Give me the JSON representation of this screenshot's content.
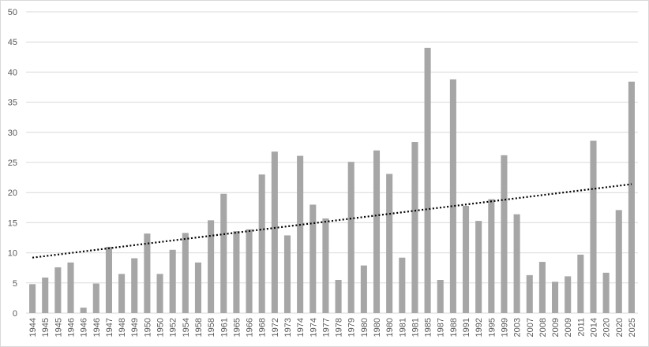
{
  "chart_data": {
    "type": "bar",
    "title": "",
    "xlabel": "",
    "ylabel": "",
    "ylim": [
      0,
      50
    ],
    "yticks": [
      0,
      5,
      10,
      15,
      20,
      25,
      30,
      35,
      40,
      45,
      50
    ],
    "grid": true,
    "legend": "none",
    "bar_color": "#a6a6a6",
    "trendline": {
      "type": "linear",
      "style": "dotted",
      "color": "#000000",
      "start": 9.2,
      "end": 21.4
    },
    "categories": [
      "1944",
      "1945",
      "1945",
      "1946",
      "1946",
      "1946",
      "1947",
      "1948",
      "1949",
      "1950",
      "1950",
      "1952",
      "1954",
      "1958",
      "1958",
      "1961",
      "1965",
      "1966",
      "1968",
      "1972",
      "1973",
      "1974",
      "1974",
      "1977",
      "1978",
      "1979",
      "1980",
      "1980",
      "1980",
      "1981",
      "1981",
      "1985",
      "1987",
      "1988",
      "1991",
      "1992",
      "1995",
      "1999",
      "2003",
      "2007",
      "2008",
      "2009",
      "2009",
      "2011",
      "2014",
      "2020",
      "2020",
      "2025"
    ],
    "values": [
      4.8,
      5.9,
      7.6,
      8.4,
      0.9,
      4.9,
      11.0,
      6.5,
      9.1,
      13.2,
      6.5,
      10.5,
      13.3,
      8.4,
      15.4,
      19.8,
      13.6,
      13.9,
      23.0,
      26.8,
      12.9,
      26.1,
      18.0,
      15.7,
      5.5,
      25.1,
      7.9,
      27.0,
      23.1,
      9.2,
      28.4,
      44.0,
      5.5,
      38.8,
      17.8,
      15.3,
      18.9,
      26.2,
      16.4,
      6.3,
      8.5,
      5.2,
      6.1,
      9.7,
      28.6,
      6.7,
      17.1,
      38.4
    ]
  }
}
